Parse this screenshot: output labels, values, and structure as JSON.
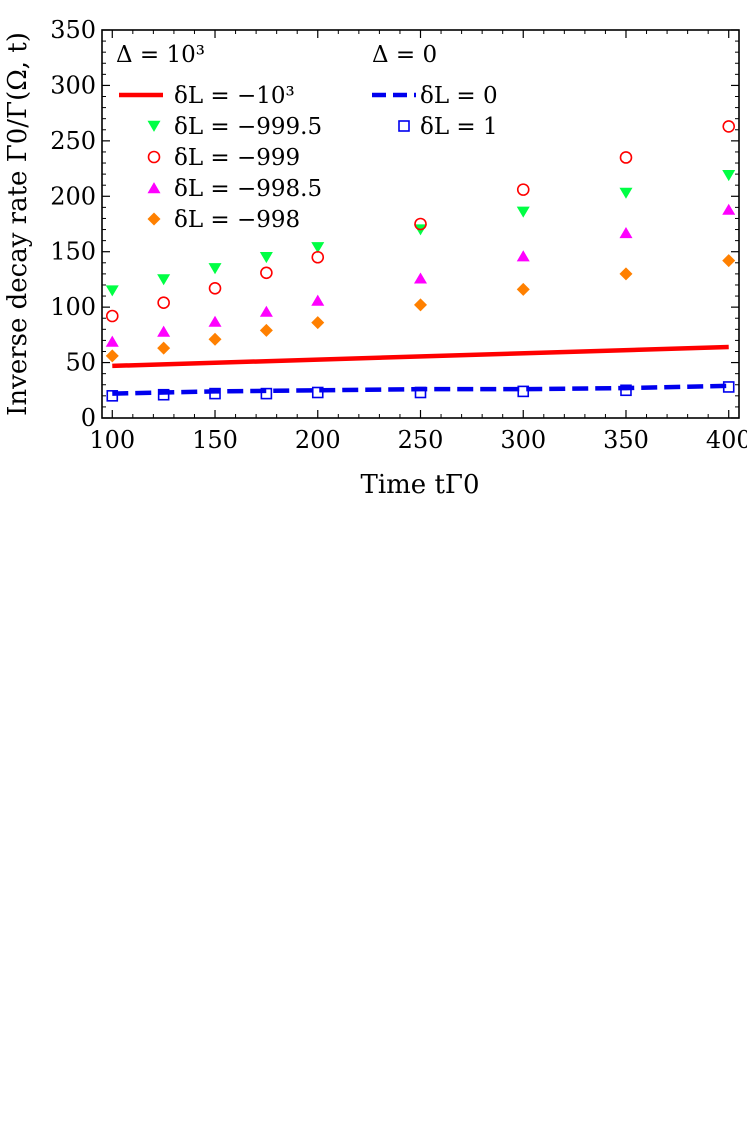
{
  "chart_data": {
    "type": "scatter",
    "xlabel": "Time tΓ0",
    "ylabel": "Inverse decay rate Γ0/Γ(Ω, t)",
    "xlim": [
      95,
      405
    ],
    "ylim": [
      0,
      350
    ],
    "xticks": [
      100,
      150,
      200,
      250,
      300,
      350,
      400
    ],
    "yticks": [
      0,
      50,
      100,
      150,
      200,
      250,
      300,
      350
    ],
    "legend_groups": [
      {
        "header": "Δ = 10³",
        "position": "top-left"
      },
      {
        "header": "Δ = 0",
        "position": "top-center"
      }
    ],
    "series": [
      {
        "name": "δL = −10³",
        "group": 0,
        "marker": "line",
        "color": "#ff0000",
        "x": [
          100,
          400
        ],
        "y": [
          47,
          64
        ]
      },
      {
        "name": "δL = −999.5",
        "group": 0,
        "marker": "triangle-down",
        "color": "#00ff44",
        "x": [
          100,
          125,
          150,
          175,
          200,
          250,
          300,
          350,
          400
        ],
        "y": [
          115,
          125,
          135,
          145,
          154,
          170,
          186,
          203,
          219
        ]
      },
      {
        "name": "δL = −999",
        "group": 0,
        "marker": "circle-open",
        "color": "#ff0000",
        "x": [
          100,
          125,
          150,
          175,
          200,
          250,
          300,
          350,
          400
        ],
        "y": [
          92,
          104,
          117,
          131,
          145,
          175,
          206,
          235,
          263
        ]
      },
      {
        "name": "δL = −998.5",
        "group": 0,
        "marker": "triangle-up",
        "color": "#ff00ff",
        "x": [
          100,
          125,
          150,
          175,
          200,
          250,
          300,
          350,
          400
        ],
        "y": [
          69,
          78,
          87,
          96,
          106,
          126,
          146,
          167,
          188
        ]
      },
      {
        "name": "δL = −998",
        "group": 0,
        "marker": "diamond",
        "color": "#ff8000",
        "x": [
          100,
          125,
          150,
          175,
          200,
          250,
          300,
          350,
          400
        ],
        "y": [
          56,
          63,
          71,
          79,
          86,
          102,
          116,
          130,
          142
        ]
      },
      {
        "name": "δL = 0",
        "group": 1,
        "marker": "dashed-line",
        "color": "#0000ee",
        "x": [
          100,
          150,
          200,
          250,
          300,
          350,
          400
        ],
        "y": [
          22,
          24,
          25,
          26,
          26,
          27,
          29
        ]
      },
      {
        "name": "δL = 1",
        "group": 1,
        "marker": "square-open",
        "color": "#0000ee",
        "x": [
          100,
          125,
          150,
          175,
          200,
          250,
          300,
          350,
          400
        ],
        "y": [
          20,
          21,
          22,
          22,
          23,
          23,
          24,
          25,
          28
        ]
      }
    ]
  }
}
